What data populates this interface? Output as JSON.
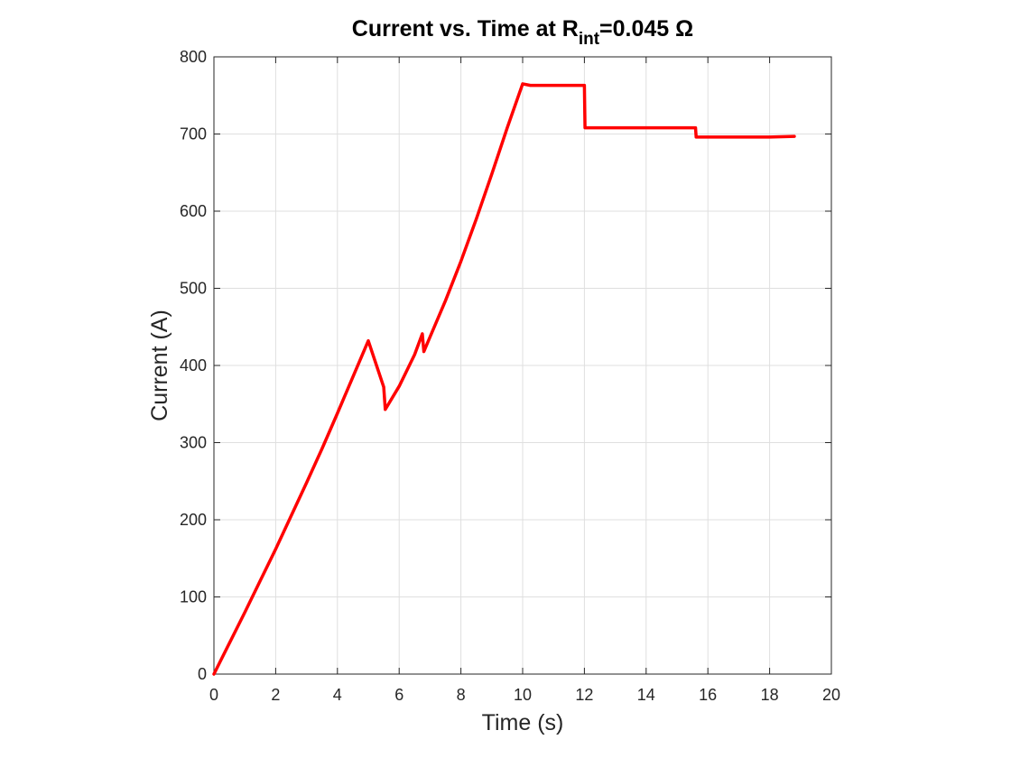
{
  "chart_data": {
    "type": "line",
    "title": {
      "main": "Current vs. Time at R",
      "subscript": "int",
      "suffix": "=0.045 Ω"
    },
    "xlabel": "Time (s)",
    "ylabel": "Current (A)",
    "xlim": [
      0,
      20
    ],
    "ylim": [
      0,
      800
    ],
    "xticks": [
      0,
      2,
      4,
      6,
      8,
      10,
      12,
      14,
      16,
      18,
      20
    ],
    "yticks": [
      0,
      100,
      200,
      300,
      400,
      500,
      600,
      700,
      800
    ],
    "grid": true,
    "legend": "none",
    "series": [
      {
        "color": "#ff0000",
        "x": [
          0,
          0.5,
          1,
          1.5,
          2,
          2.5,
          3,
          3.5,
          4,
          4.5,
          5,
          5.5,
          5.55,
          6,
          6.5,
          6.75,
          6.8,
          7,
          7.5,
          8,
          8.5,
          9,
          9.5,
          10,
          10.25,
          11,
          12,
          12.02,
          13,
          14,
          15,
          15.6,
          15.62,
          16,
          17,
          18,
          18.8
        ],
        "y": [
          0,
          40,
          80,
          121,
          162,
          205,
          248,
          292,
          338,
          385,
          432,
          372,
          343,
          373,
          414,
          441,
          418,
          437,
          484,
          535,
          590,
          648,
          708,
          765,
          763,
          763,
          763,
          708,
          708,
          708,
          708,
          708,
          696,
          696,
          696,
          696,
          697
        ]
      }
    ]
  }
}
